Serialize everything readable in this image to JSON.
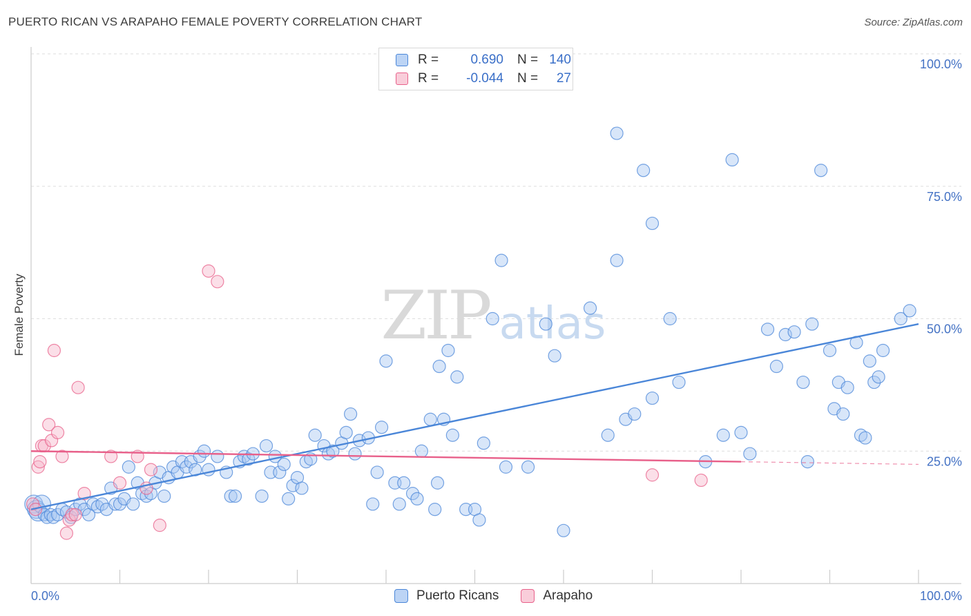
{
  "header": {
    "title": "PUERTO RICAN VS ARAPAHO FEMALE POVERTY CORRELATION CHART",
    "source": "Source: ZipAtlas.com"
  },
  "watermark": {
    "zip": "ZIP",
    "atlas": "atlas"
  },
  "legend": {
    "rows": [
      {
        "r_label": "R =",
        "r_value": "0.690",
        "n_label": "N =",
        "n_value": "140",
        "color": "#a9c8f2"
      },
      {
        "r_label": "R =",
        "r_value": "-0.044",
        "n_label": "N =",
        "n_value": "27",
        "color": "#f6b8cb"
      }
    ]
  },
  "bottom_legend": {
    "items": [
      "Puerto Ricans",
      "Arapaho"
    ]
  },
  "chart_data": {
    "type": "scatter",
    "title": "PUERTO RICAN VS ARAPAHO FEMALE POVERTY CORRELATION CHART",
    "xlabel": "",
    "ylabel": "Female Poverty",
    "xlim": [
      0,
      100
    ],
    "ylim": [
      0,
      100
    ],
    "x_tick_labels": [
      "0.0%",
      "100.0%"
    ],
    "y_tick_labels": [
      "100.0%",
      "75.0%",
      "50.0%",
      "25.0%"
    ],
    "y_ticks": [
      100,
      75,
      50,
      25
    ],
    "grid": true,
    "legend_placement": "top-center",
    "series": [
      {
        "name": "Puerto Ricans",
        "color": "#4a86d8",
        "fill": "#a9c8f2",
        "r": 0.69,
        "n": 140,
        "trend": {
          "x": [
            0,
            100
          ],
          "y": [
            14,
            49
          ]
        },
        "points": [
          [
            0.3,
            15
          ],
          [
            0.6,
            14
          ],
          [
            0.8,
            13.5
          ],
          [
            1.2,
            15
          ],
          [
            1.5,
            13
          ],
          [
            1.8,
            12.5
          ],
          [
            2.2,
            13
          ],
          [
            2.5,
            12.5
          ],
          [
            3,
            13
          ],
          [
            3.5,
            14
          ],
          [
            4,
            13.5
          ],
          [
            4.5,
            12.5
          ],
          [
            5,
            14
          ],
          [
            5.5,
            15
          ],
          [
            6,
            14
          ],
          [
            6.5,
            13
          ],
          [
            7,
            15
          ],
          [
            7.5,
            14.5
          ],
          [
            8,
            15
          ],
          [
            8.5,
            14
          ],
          [
            9,
            18
          ],
          [
            9.5,
            15
          ],
          [
            10,
            15
          ],
          [
            10.5,
            16
          ],
          [
            11,
            22
          ],
          [
            11.5,
            15
          ],
          [
            12,
            19
          ],
          [
            12.5,
            17
          ],
          [
            13,
            16.5
          ],
          [
            13.5,
            17
          ],
          [
            14,
            19
          ],
          [
            14.5,
            21
          ],
          [
            15,
            16.5
          ],
          [
            15.5,
            20
          ],
          [
            16,
            22
          ],
          [
            16.5,
            21
          ],
          [
            17,
            23
          ],
          [
            17.5,
            22
          ],
          [
            18,
            23
          ],
          [
            18.5,
            21.5
          ],
          [
            19,
            24
          ],
          [
            19.5,
            25
          ],
          [
            20,
            21.5
          ],
          [
            21,
            24
          ],
          [
            22,
            21
          ],
          [
            22.5,
            16.5
          ],
          [
            23,
            16.5
          ],
          [
            23.5,
            23
          ],
          [
            24,
            24
          ],
          [
            24.5,
            23.5
          ],
          [
            25,
            24.5
          ],
          [
            26,
            16.5
          ],
          [
            26.5,
            26
          ],
          [
            27,
            21
          ],
          [
            27.5,
            24
          ],
          [
            28,
            21
          ],
          [
            28.5,
            22.5
          ],
          [
            29,
            16
          ],
          [
            29.5,
            18.5
          ],
          [
            30,
            20
          ],
          [
            30.5,
            18
          ],
          [
            31,
            23
          ],
          [
            31.5,
            23.5
          ],
          [
            32,
            28
          ],
          [
            33,
            26
          ],
          [
            33.5,
            24.5
          ],
          [
            34,
            25
          ],
          [
            35,
            26.5
          ],
          [
            35.5,
            28.5
          ],
          [
            36,
            32
          ],
          [
            36.5,
            24.5
          ],
          [
            37,
            27
          ],
          [
            38,
            27.5
          ],
          [
            38.5,
            15
          ],
          [
            39,
            21
          ],
          [
            39.5,
            29.5
          ],
          [
            40,
            42
          ],
          [
            41,
            19
          ],
          [
            41.5,
            15
          ],
          [
            42,
            19
          ],
          [
            43,
            17
          ],
          [
            43.5,
            16
          ],
          [
            44,
            25
          ],
          [
            45,
            31
          ],
          [
            45.5,
            14
          ],
          [
            45.8,
            19
          ],
          [
            46,
            41
          ],
          [
            46.5,
            31
          ],
          [
            47,
            44
          ],
          [
            47.5,
            28
          ],
          [
            48,
            39
          ],
          [
            49,
            14
          ],
          [
            50,
            14
          ],
          [
            50.5,
            12
          ],
          [
            51,
            26.5
          ],
          [
            52,
            50
          ],
          [
            53,
            61
          ],
          [
            53.5,
            22
          ],
          [
            56,
            22
          ],
          [
            58,
            49
          ],
          [
            59,
            43
          ],
          [
            60,
            10
          ],
          [
            63,
            52
          ],
          [
            65,
            28
          ],
          [
            66,
            61
          ],
          [
            66,
            85
          ],
          [
            67,
            31
          ],
          [
            68,
            32
          ],
          [
            69,
            78
          ],
          [
            70,
            68
          ],
          [
            70,
            35
          ],
          [
            72,
            50
          ],
          [
            73,
            38
          ],
          [
            76,
            23
          ],
          [
            78,
            28
          ],
          [
            79,
            80
          ],
          [
            80,
            28.5
          ],
          [
            81,
            24.5
          ],
          [
            83,
            48
          ],
          [
            84,
            41
          ],
          [
            85,
            47
          ],
          [
            86,
            47.5
          ],
          [
            87,
            38
          ],
          [
            87.5,
            23
          ],
          [
            88,
            49
          ],
          [
            89,
            78
          ],
          [
            90,
            44
          ],
          [
            90.5,
            33
          ],
          [
            91,
            38
          ],
          [
            91.5,
            32
          ],
          [
            92,
            37
          ],
          [
            93,
            45.5
          ],
          [
            93.5,
            28
          ],
          [
            94,
            27.5
          ],
          [
            94.5,
            42
          ],
          [
            95,
            38
          ],
          [
            95.5,
            39
          ],
          [
            96,
            44
          ],
          [
            98,
            50
          ],
          [
            99,
            51.5
          ]
        ]
      },
      {
        "name": "Arapaho",
        "color": "#e8608a",
        "fill": "#f6b8cb",
        "r": -0.044,
        "n": 27,
        "trend": {
          "x": [
            0,
            80
          ],
          "y": [
            25,
            23
          ],
          "dashed_extension_to": 100
        },
        "points": [
          [
            0.2,
            15
          ],
          [
            0.5,
            14
          ],
          [
            0.8,
            22
          ],
          [
            1,
            23
          ],
          [
            1.2,
            26
          ],
          [
            1.5,
            26
          ],
          [
            2,
            30
          ],
          [
            2.3,
            27
          ],
          [
            2.6,
            44
          ],
          [
            3,
            28.5
          ],
          [
            3.5,
            24
          ],
          [
            4,
            9.5
          ],
          [
            4.3,
            12
          ],
          [
            4.6,
            13
          ],
          [
            5,
            13
          ],
          [
            5.3,
            37
          ],
          [
            6,
            17
          ],
          [
            9,
            24
          ],
          [
            10,
            19
          ],
          [
            12,
            24
          ],
          [
            13,
            18
          ],
          [
            13.5,
            21.5
          ],
          [
            14.5,
            11
          ],
          [
            20,
            59
          ],
          [
            21,
            57
          ],
          [
            70,
            20.5
          ],
          [
            75.5,
            19.5
          ]
        ]
      }
    ]
  }
}
